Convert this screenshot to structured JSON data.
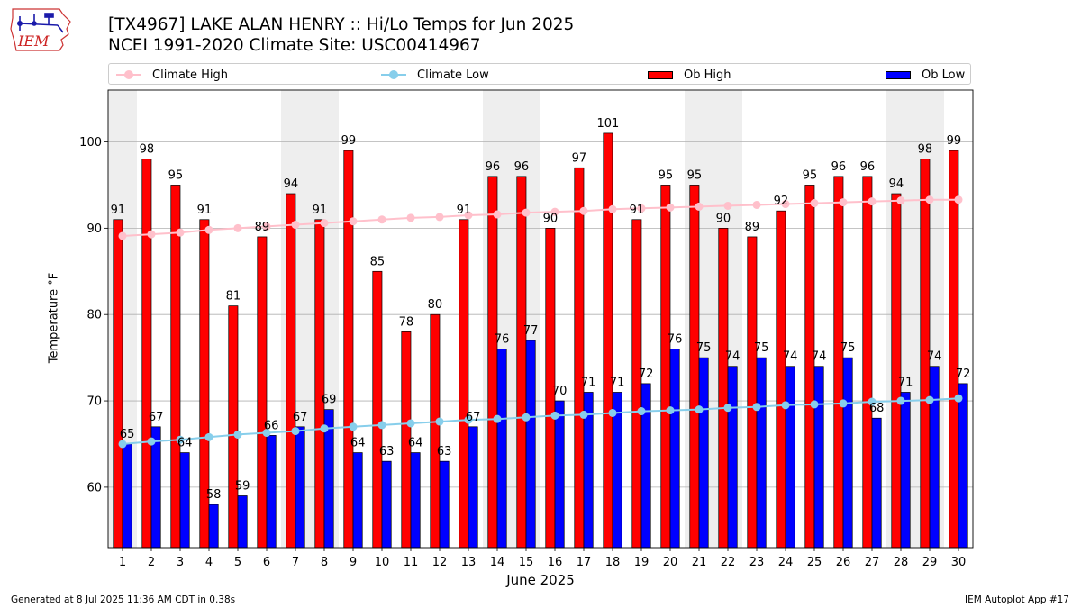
{
  "header": {
    "title_line1": "[TX4967] LAKE ALAN HENRY :: Hi/Lo Temps for Jun 2025",
    "title_line2": "NCEI 1991-2020 Climate Site: USC00414967"
  },
  "logo": {
    "text": "IEM"
  },
  "legend": {
    "climate_high": "Climate High",
    "climate_low": "Climate Low",
    "ob_high": "Ob High",
    "ob_low": "Ob Low"
  },
  "footer": {
    "left": "Generated at 8 Jul 2025 11:36 AM CDT in 0.38s",
    "right": "IEM Autoplot App #17"
  },
  "colors": {
    "ob_high": "#ff0000",
    "ob_low": "#0000ff",
    "climate_high": "#ffc0cb",
    "climate_low": "#87ceeb",
    "weekend_shade": "#eeeeee",
    "grid": "#b0b0b0"
  },
  "chart_data": {
    "type": "bar",
    "xlabel": "June 2025",
    "ylabel": "Temperature °F",
    "ylim": [
      53,
      106
    ],
    "yticks": [
      60,
      70,
      80,
      90,
      100
    ],
    "grid": "horizontal",
    "legend_placement": "top",
    "categories": [
      "1",
      "2",
      "3",
      "4",
      "5",
      "6",
      "7",
      "8",
      "9",
      "10",
      "11",
      "12",
      "13",
      "14",
      "15",
      "16",
      "17",
      "18",
      "19",
      "20",
      "21",
      "22",
      "23",
      "24",
      "25",
      "26",
      "27",
      "28",
      "29",
      "30"
    ],
    "shaded_days": [
      1,
      7,
      8,
      14,
      15,
      21,
      22,
      28,
      29
    ],
    "series": [
      {
        "name": "Ob High",
        "kind": "bar",
        "values": [
          91,
          98,
          95,
          91,
          81,
          89,
          94,
          91,
          99,
          85,
          78,
          80,
          91,
          96,
          96,
          90,
          97,
          101,
          91,
          95,
          95,
          90,
          89,
          92,
          95,
          96,
          96,
          94,
          98,
          99
        ]
      },
      {
        "name": "Ob Low",
        "kind": "bar",
        "values": [
          65,
          67,
          64,
          58,
          59,
          66,
          67,
          69,
          64,
          63,
          64,
          63,
          67,
          76,
          77,
          70,
          71,
          71,
          72,
          76,
          75,
          74,
          75,
          74,
          74,
          75,
          68,
          71,
          74,
          72
        ]
      },
      {
        "name": "Climate High",
        "kind": "line",
        "values": [
          89.1,
          89.3,
          89.5,
          89.8,
          90.0,
          90.2,
          90.4,
          90.6,
          90.8,
          91.0,
          91.2,
          91.3,
          91.5,
          91.6,
          91.8,
          91.9,
          92.0,
          92.2,
          92.3,
          92.4,
          92.5,
          92.6,
          92.7,
          92.8,
          92.9,
          93.0,
          93.1,
          93.2,
          93.3,
          93.3
        ]
      },
      {
        "name": "Climate Low",
        "kind": "line",
        "values": [
          65.0,
          65.3,
          65.5,
          65.8,
          66.1,
          66.3,
          66.5,
          66.8,
          67.0,
          67.2,
          67.4,
          67.6,
          67.8,
          67.9,
          68.1,
          68.3,
          68.4,
          68.6,
          68.8,
          68.9,
          69.0,
          69.2,
          69.3,
          69.5,
          69.6,
          69.7,
          69.9,
          70.0,
          70.1,
          70.3
        ]
      }
    ]
  }
}
